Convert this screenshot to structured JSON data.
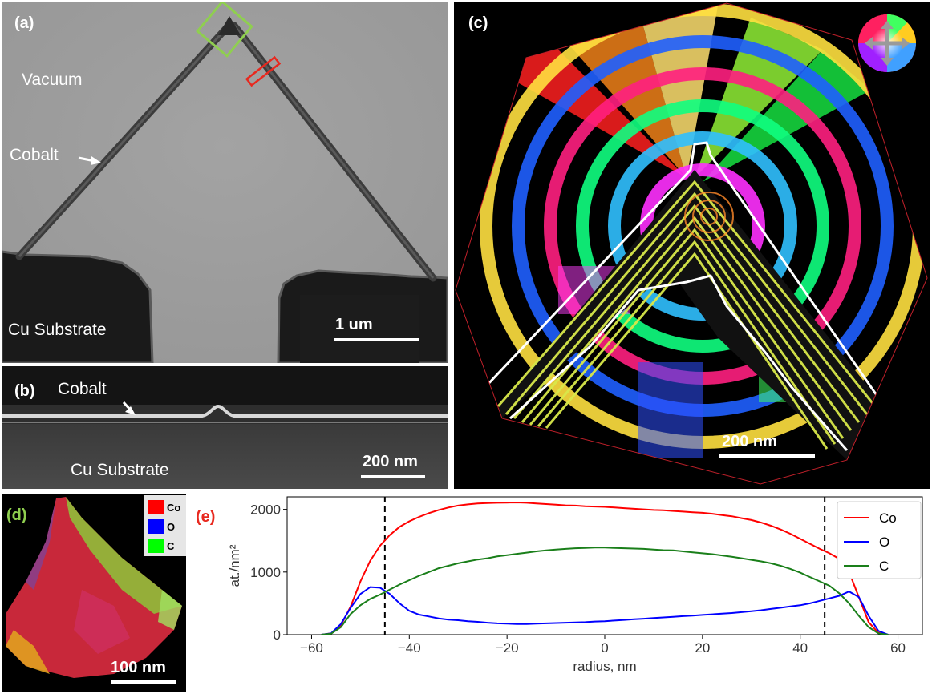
{
  "panel_a": {
    "label": "(a)",
    "vacuum": "Vacuum",
    "cobalt": "Cobalt",
    "substrate": "Cu Substrate",
    "scalebar": "1 um"
  },
  "panel_b": {
    "label": "(b)",
    "cobalt": "Cobalt",
    "substrate": "Cu Substrate",
    "scalebar": "200 nm"
  },
  "panel_c": {
    "label": "(c)",
    "scalebar": "200 nm"
  },
  "panel_d": {
    "label": "(d)",
    "scalebar": "100 nm",
    "legend": [
      {
        "name": "Co",
        "color": "#ff0000"
      },
      {
        "name": "O",
        "color": "#0000ff"
      },
      {
        "name": "C",
        "color": "#00ff00"
      }
    ]
  },
  "panel_e": {
    "label": "(e)"
  },
  "colors": {
    "label_a_b_c": "#ffffff",
    "label_d": "#8fcf4f",
    "label_e": "#e8281e",
    "green_box": "#8fcf4f",
    "red_box": "#e8281e"
  },
  "chart_data": {
    "type": "line",
    "xlabel": "radius, nm",
    "ylabel": "at./nm²",
    "xlim": [
      -65,
      65
    ],
    "ylim": [
      0,
      2200
    ],
    "xticks": [
      -60,
      -40,
      -20,
      0,
      20,
      40,
      60
    ],
    "xtick_labels": [
      "−60",
      "−40",
      "−20",
      "0",
      "20",
      "40",
      "60"
    ],
    "yticks": [
      0,
      1000,
      2000
    ],
    "ytick_labels": [
      "0",
      "1000",
      "2000"
    ],
    "vlines": [
      -45,
      45
    ],
    "legend_position": "top-right",
    "x": [
      -58,
      -56,
      -54,
      -52,
      -50,
      -48,
      -46,
      -44,
      -42,
      -40,
      -38,
      -36,
      -34,
      -32,
      -30,
      -28,
      -26,
      -24,
      -22,
      -20,
      -18,
      -16,
      -14,
      -12,
      -10,
      -8,
      -6,
      -4,
      -2,
      0,
      2,
      4,
      6,
      8,
      10,
      12,
      14,
      16,
      18,
      20,
      22,
      24,
      26,
      28,
      30,
      32,
      34,
      36,
      38,
      40,
      42,
      44,
      46,
      48,
      50,
      52,
      54,
      56,
      58
    ],
    "series": [
      {
        "name": "Co",
        "color": "#ff0000",
        "values": [
          0,
          20,
          150,
          450,
          850,
          1180,
          1420,
          1590,
          1720,
          1810,
          1880,
          1940,
          1990,
          2030,
          2060,
          2080,
          2095,
          2100,
          2105,
          2108,
          2110,
          2105,
          2095,
          2085,
          2075,
          2065,
          2060,
          2050,
          2045,
          2040,
          2030,
          2020,
          2010,
          2000,
          1990,
          1985,
          1975,
          1965,
          1955,
          1945,
          1930,
          1910,
          1890,
          1860,
          1830,
          1790,
          1740,
          1680,
          1610,
          1530,
          1450,
          1370,
          1300,
          1210,
          1000,
          600,
          200,
          30,
          0
        ]
      },
      {
        "name": "O",
        "color": "#0000ff",
        "values": [
          0,
          20,
          170,
          430,
          650,
          760,
          750,
          650,
          500,
          380,
          320,
          290,
          260,
          240,
          230,
          215,
          205,
          190,
          180,
          175,
          170,
          170,
          175,
          180,
          185,
          190,
          195,
          200,
          210,
          215,
          225,
          235,
          245,
          255,
          265,
          275,
          285,
          295,
          305,
          315,
          325,
          335,
          345,
          360,
          375,
          390,
          410,
          430,
          450,
          470,
          500,
          540,
          580,
          620,
          690,
          600,
          300,
          60,
          0
        ]
      },
      {
        "name": "C",
        "color": "#1a7f1a",
        "values": [
          0,
          15,
          120,
          330,
          470,
          570,
          640,
          720,
          800,
          870,
          940,
          1000,
          1060,
          1100,
          1140,
          1170,
          1200,
          1220,
          1250,
          1270,
          1290,
          1310,
          1330,
          1345,
          1360,
          1370,
          1380,
          1385,
          1390,
          1390,
          1385,
          1380,
          1375,
          1370,
          1360,
          1350,
          1345,
          1330,
          1315,
          1300,
          1285,
          1265,
          1245,
          1220,
          1195,
          1170,
          1140,
          1100,
          1050,
          990,
          920,
          850,
          780,
          660,
          500,
          300,
          120,
          20,
          0
        ]
      }
    ]
  }
}
